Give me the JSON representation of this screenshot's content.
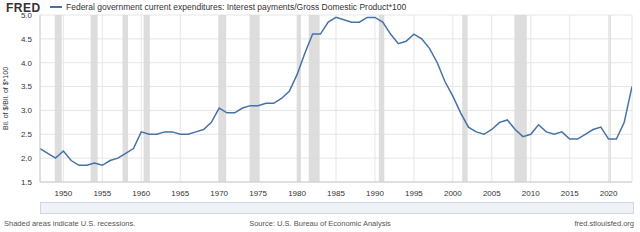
{
  "chart_data": {
    "type": "line",
    "logo": "FRED",
    "title": "Federal government current expenditures: Interest payments/Gross Domestic Product*100",
    "y_label": "Bil. of $/Bil. of $*100",
    "note": "Shaded areas indicate U.S. recessions.",
    "source": "Source: U.S. Bureau of Economic Analysis",
    "site": "fred.stlouisfed.org",
    "x": [
      1947,
      1948,
      1949,
      1950,
      1951,
      1952,
      1953,
      1954,
      1955,
      1956,
      1957,
      1958,
      1959,
      1960,
      1961,
      1962,
      1963,
      1964,
      1965,
      1966,
      1967,
      1968,
      1969,
      1970,
      1971,
      1972,
      1973,
      1974,
      1975,
      1976,
      1977,
      1978,
      1979,
      1980,
      1981,
      1982,
      1983,
      1984,
      1985,
      1986,
      1987,
      1988,
      1989,
      1990,
      1991,
      1992,
      1993,
      1994,
      1995,
      1996,
      1997,
      1998,
      1999,
      2000,
      2001,
      2002,
      2003,
      2004,
      2005,
      2006,
      2007,
      2008,
      2009,
      2010,
      2011,
      2012,
      2013,
      2014,
      2015,
      2016,
      2017,
      2018,
      2019,
      2020,
      2021,
      2022,
      2023
    ],
    "series": [
      {
        "name": "Federal government current expenditures: Interest payments/Gross Domestic Product*100",
        "color": "#4572a7",
        "values": [
          2.2,
          2.1,
          2.0,
          2.15,
          1.95,
          1.85,
          1.85,
          1.9,
          1.85,
          1.95,
          2.0,
          2.1,
          2.2,
          2.55,
          2.5,
          2.5,
          2.55,
          2.55,
          2.5,
          2.5,
          2.55,
          2.6,
          2.75,
          3.05,
          2.95,
          2.95,
          3.05,
          3.1,
          3.1,
          3.15,
          3.15,
          3.25,
          3.4,
          3.75,
          4.2,
          4.6,
          4.6,
          4.85,
          4.95,
          4.9,
          4.85,
          4.85,
          4.95,
          4.95,
          4.85,
          4.6,
          4.4,
          4.45,
          4.6,
          4.5,
          4.3,
          4.0,
          3.6,
          3.3,
          2.95,
          2.65,
          2.55,
          2.5,
          2.6,
          2.75,
          2.8,
          2.6,
          2.45,
          2.5,
          2.7,
          2.55,
          2.5,
          2.55,
          2.4,
          2.4,
          2.5,
          2.6,
          2.65,
          2.4,
          2.4,
          2.75,
          3.5
        ]
      }
    ],
    "recessions": [
      [
        1948.9,
        1949.8
      ],
      [
        1953.5,
        1954.4
      ],
      [
        1957.6,
        1958.3
      ],
      [
        1960.3,
        1961.1
      ],
      [
        1969.9,
        1970.9
      ],
      [
        1973.9,
        1975.2
      ],
      [
        1980.0,
        1980.5
      ],
      [
        1981.5,
        1982.9
      ],
      [
        1990.5,
        1991.2
      ],
      [
        2001.2,
        2001.9
      ],
      [
        2007.9,
        2009.5
      ],
      [
        2020.1,
        2020.3
      ]
    ],
    "xlim": [
      1947,
      2023
    ],
    "xticks": [
      1950,
      1955,
      1960,
      1965,
      1970,
      1975,
      1980,
      1985,
      1990,
      1995,
      2000,
      2005,
      2010,
      2015,
      2020
    ],
    "ylim": [
      1.5,
      5.0
    ],
    "yticks": [
      1.5,
      {
        "value": 2,
        "label": "2.0"
      },
      2.5,
      {
        "value": 3,
        "label": "3.0"
      },
      3.5,
      {
        "value": 4,
        "label": "4.0"
      },
      4.5,
      {
        "value": 5,
        "label": "5.0"
      }
    ],
    "grid": true
  }
}
